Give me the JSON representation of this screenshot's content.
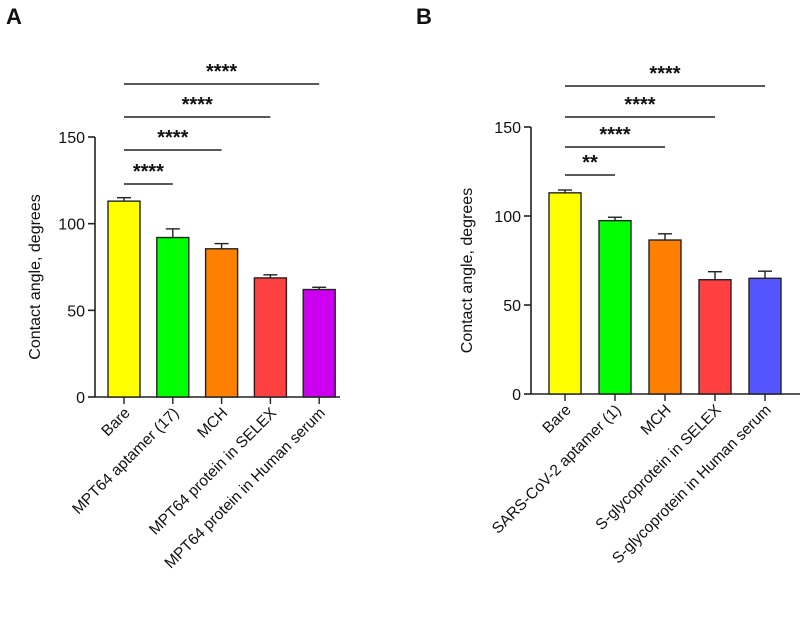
{
  "chart_data": [
    {
      "panel_label": "A",
      "type": "bar",
      "title": "",
      "xlabel": "",
      "ylabel": "Contact angle, degrees",
      "ylim": [
        0,
        150
      ],
      "yticks": [
        0,
        50,
        100,
        150
      ],
      "ytick_labels": [
        "0",
        "50",
        "100",
        "150"
      ],
      "grid": false,
      "categories": [
        "Bare",
        "MPT64 aptamer (17)",
        "MCH",
        "MPT64 protein in SELEX",
        "MPT64 protein in Human serum"
      ],
      "values": [
        113,
        92,
        85.5,
        68.7,
        62
      ],
      "error": [
        2,
        5,
        3,
        1.8,
        1.3
      ],
      "colors": [
        "#ffff00",
        "#00ff00",
        "#ff8000",
        "#ff4040",
        "#cc00ee"
      ],
      "significance": [
        {
          "from": 0,
          "to": 1,
          "label": "****"
        },
        {
          "from": 0,
          "to": 2,
          "label": "****"
        },
        {
          "from": 0,
          "to": 3,
          "label": "****"
        },
        {
          "from": 0,
          "to": 4,
          "label": "****"
        }
      ]
    },
    {
      "panel_label": "B",
      "type": "bar",
      "title": "",
      "xlabel": "",
      "ylabel": "Contact angle, degrees",
      "ylim": [
        0,
        150
      ],
      "yticks": [
        0,
        50,
        100,
        150
      ],
      "ytick_labels": [
        "0",
        "50",
        "100",
        "150"
      ],
      "grid": false,
      "categories": [
        "Bare",
        "SARS-CoV-2 aptamer (1)",
        "MCH",
        "S-glycoprotein in SELEX",
        "S-glycoprotein in Human serum"
      ],
      "values": [
        113,
        97.4,
        86.5,
        64.2,
        65
      ],
      "error": [
        1.6,
        1.9,
        3.5,
        4.5,
        4
      ],
      "colors": [
        "#ffff00",
        "#00ff00",
        "#ff8000",
        "#ff4040",
        "#5555ff"
      ],
      "significance": [
        {
          "from": 0,
          "to": 1,
          "label": "**"
        },
        {
          "from": 0,
          "to": 2,
          "label": "****"
        },
        {
          "from": 0,
          "to": 3,
          "label": "****"
        },
        {
          "from": 0,
          "to": 4,
          "label": "****"
        }
      ]
    }
  ]
}
